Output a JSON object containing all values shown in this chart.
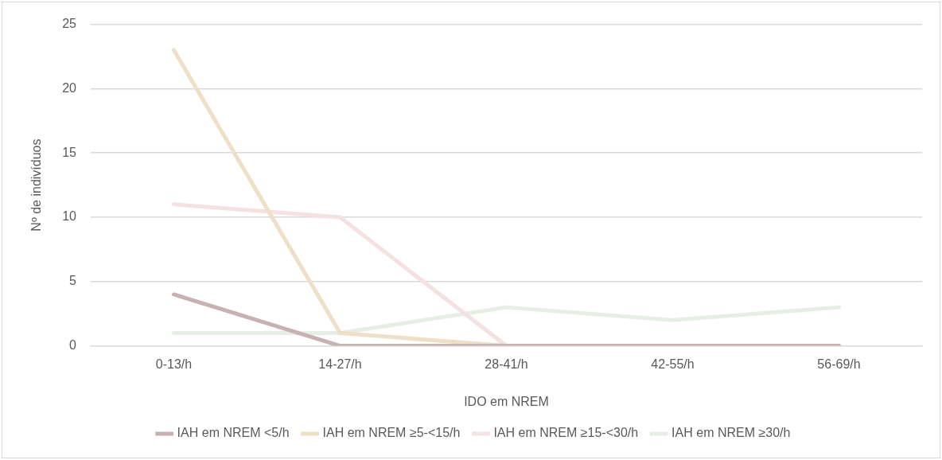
{
  "chart_data": {
    "type": "line",
    "xlabel": "IDO em NREM",
    "ylabel": "Nº de indivíduos",
    "categories": [
      "0-13/h",
      "14-27/h",
      "28-41/h",
      "42-55/h",
      "56-69/h"
    ],
    "series": [
      {
        "name": "IAH em NREM <5/h",
        "color": "#c8b1b2",
        "values": [
          4,
          0,
          0,
          0,
          0
        ]
      },
      {
        "name": "IAH em NREM ≥5-<15/h",
        "color": "#efdfc6",
        "values": [
          23,
          1,
          0,
          0,
          0
        ]
      },
      {
        "name": "IAH em NREM ≥15-<30/h",
        "color": "#f5e1e1",
        "values": [
          11,
          10,
          0,
          0,
          0
        ]
      },
      {
        "name": "IAH em NREM ≥30/h",
        "color": "#e6eee6",
        "values": [
          1,
          1,
          3,
          2,
          3
        ]
      }
    ],
    "ylim": [
      0,
      25
    ],
    "yticks": [
      0,
      5,
      10,
      15,
      20,
      25
    ],
    "grid": "y",
    "legend": "bottom",
    "marker": "none",
    "line_style": "solid"
  }
}
